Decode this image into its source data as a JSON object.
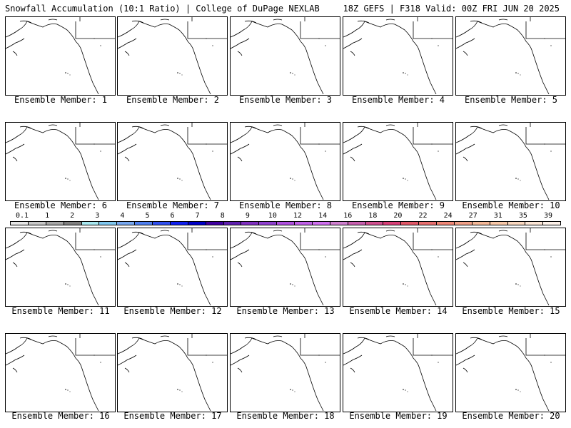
{
  "header": {
    "title": "Snowfall Accumulation (10:1 Ratio) | College of DuPage NEXLAB",
    "run_info": "18Z GEFS | F318 Valid: 00Z FRI JUN 20 2025"
  },
  "panels": [
    {
      "label": "Ensemble Member: 1"
    },
    {
      "label": "Ensemble Member: 2"
    },
    {
      "label": "Ensemble Member: 3"
    },
    {
      "label": "Ensemble Member: 4"
    },
    {
      "label": "Ensemble Member: 5"
    },
    {
      "label": "Ensemble Member: 6"
    },
    {
      "label": "Ensemble Member: 7"
    },
    {
      "label": "Ensemble Member: 8"
    },
    {
      "label": "Ensemble Member: 9"
    },
    {
      "label": "Ensemble Member: 10"
    },
    {
      "label": "Ensemble Member: 11"
    },
    {
      "label": "Ensemble Member: 12"
    },
    {
      "label": "Ensemble Member: 13"
    },
    {
      "label": "Ensemble Member: 14"
    },
    {
      "label": "Ensemble Member: 15"
    },
    {
      "label": "Ensemble Member: 16"
    },
    {
      "label": "Ensemble Member: 17"
    },
    {
      "label": "Ensemble Member: 18"
    },
    {
      "label": "Ensemble Member: 19"
    },
    {
      "label": "Ensemble Member: 20"
    }
  ],
  "colorbar": {
    "labels": [
      "0.1",
      "1",
      "2",
      "3",
      "4",
      "5",
      "6",
      "7",
      "8",
      "9",
      "10",
      "12",
      "14",
      "16",
      "18",
      "20",
      "22",
      "24",
      "27",
      "31",
      "35",
      "39"
    ],
    "colors": [
      "#e6e6e6",
      "#c8c8c8",
      "#a6a6a6",
      "#808080",
      "#a8e8f0",
      "#80c8f0",
      "#78a8f0",
      "#5080f0",
      "#3050f0",
      "#1020f0",
      "#0000c8",
      "#4000a0",
      "#6020b0",
      "#8030c0",
      "#9040d0",
      "#b050e0",
      "#c060e8",
      "#d070f0",
      "#d080d0",
      "#c860b0",
      "#d05090",
      "#d84078",
      "#e05868",
      "#e87070",
      "#f08878",
      "#f0a088",
      "#f4b898",
      "#f8c8a8",
      "#fad8c0",
      "#fce6d6",
      "#fef2ea"
    ]
  }
}
